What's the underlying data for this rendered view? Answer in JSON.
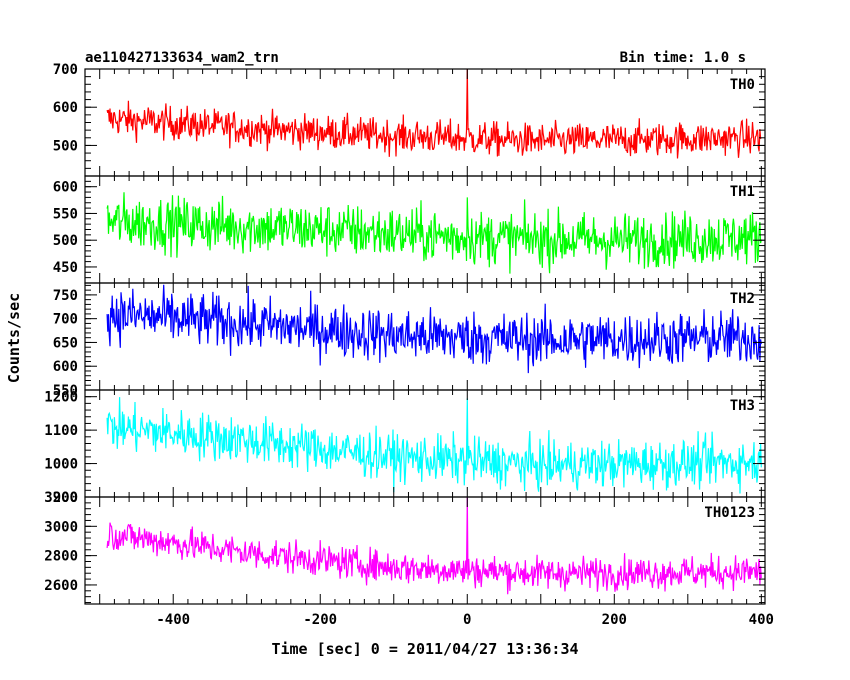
{
  "chart_data": {
    "type": "line",
    "title": "ae110427133634_wam2_trn",
    "subtitle": "Bin time: 1.0 s",
    "xlabel": "Time [sec] 0 = 2011/04/27 13:36:34",
    "ylabel": "Counts/sec",
    "xlim": [
      -520,
      405
    ],
    "xticks": [
      -400,
      -200,
      0,
      200,
      400
    ],
    "grid": false,
    "panels": [
      {
        "name": "TH0",
        "color": "#ff0000",
        "ylim": [
          420,
          700
        ],
        "yticks": [
          500,
          600,
          700
        ],
        "trend": [
          [
            -490,
            570
          ],
          [
            -300,
            545
          ],
          [
            -100,
            525
          ],
          [
            100,
            512
          ],
          [
            400,
            520
          ]
        ],
        "noise": 22,
        "spikes": [
          [
            0,
            700
          ]
        ]
      },
      {
        "name": "TH1",
        "color": "#00ff00",
        "ylim": [
          420,
          620
        ],
        "yticks": [
          450,
          500,
          550,
          600
        ],
        "trend": [
          [
            -490,
            535
          ],
          [
            -200,
            520
          ],
          [
            0,
            505
          ],
          [
            200,
            500
          ],
          [
            400,
            505
          ]
        ],
        "noise": 25,
        "spikes": [
          [
            0,
            580
          ]
        ]
      },
      {
        "name": "TH2",
        "color": "#0000ff",
        "ylim": [
          550,
          775
        ],
        "yticks": [
          550,
          600,
          650,
          700,
          750
        ],
        "trend": [
          [
            -490,
            710
          ],
          [
            -300,
            690
          ],
          [
            -100,
            665
          ],
          [
            100,
            655
          ],
          [
            400,
            660
          ]
        ],
        "noise": 28,
        "spikes": []
      },
      {
        "name": "TH3",
        "color": "#00ffff",
        "ylim": [
          900,
          1220
        ],
        "yticks": [
          900,
          1000,
          1100,
          1200
        ],
        "trend": [
          [
            -490,
            1110
          ],
          [
            -300,
            1070
          ],
          [
            -100,
            1020
          ],
          [
            100,
            995
          ],
          [
            400,
            1005
          ]
        ],
        "noise": 35,
        "spikes": [
          [
            0,
            1195
          ]
        ]
      },
      {
        "name": "TH0123",
        "color": "#ff00ff",
        "ylim": [
          2470,
          3200
        ],
        "yticks": [
          2600,
          2800,
          3000,
          3200
        ],
        "trend": [
          [
            -490,
            2950
          ],
          [
            -300,
            2820
          ],
          [
            -100,
            2720
          ],
          [
            100,
            2680
          ],
          [
            400,
            2690
          ]
        ],
        "noise": 55,
        "spikes": [
          [
            0,
            3200
          ]
        ]
      }
    ]
  }
}
